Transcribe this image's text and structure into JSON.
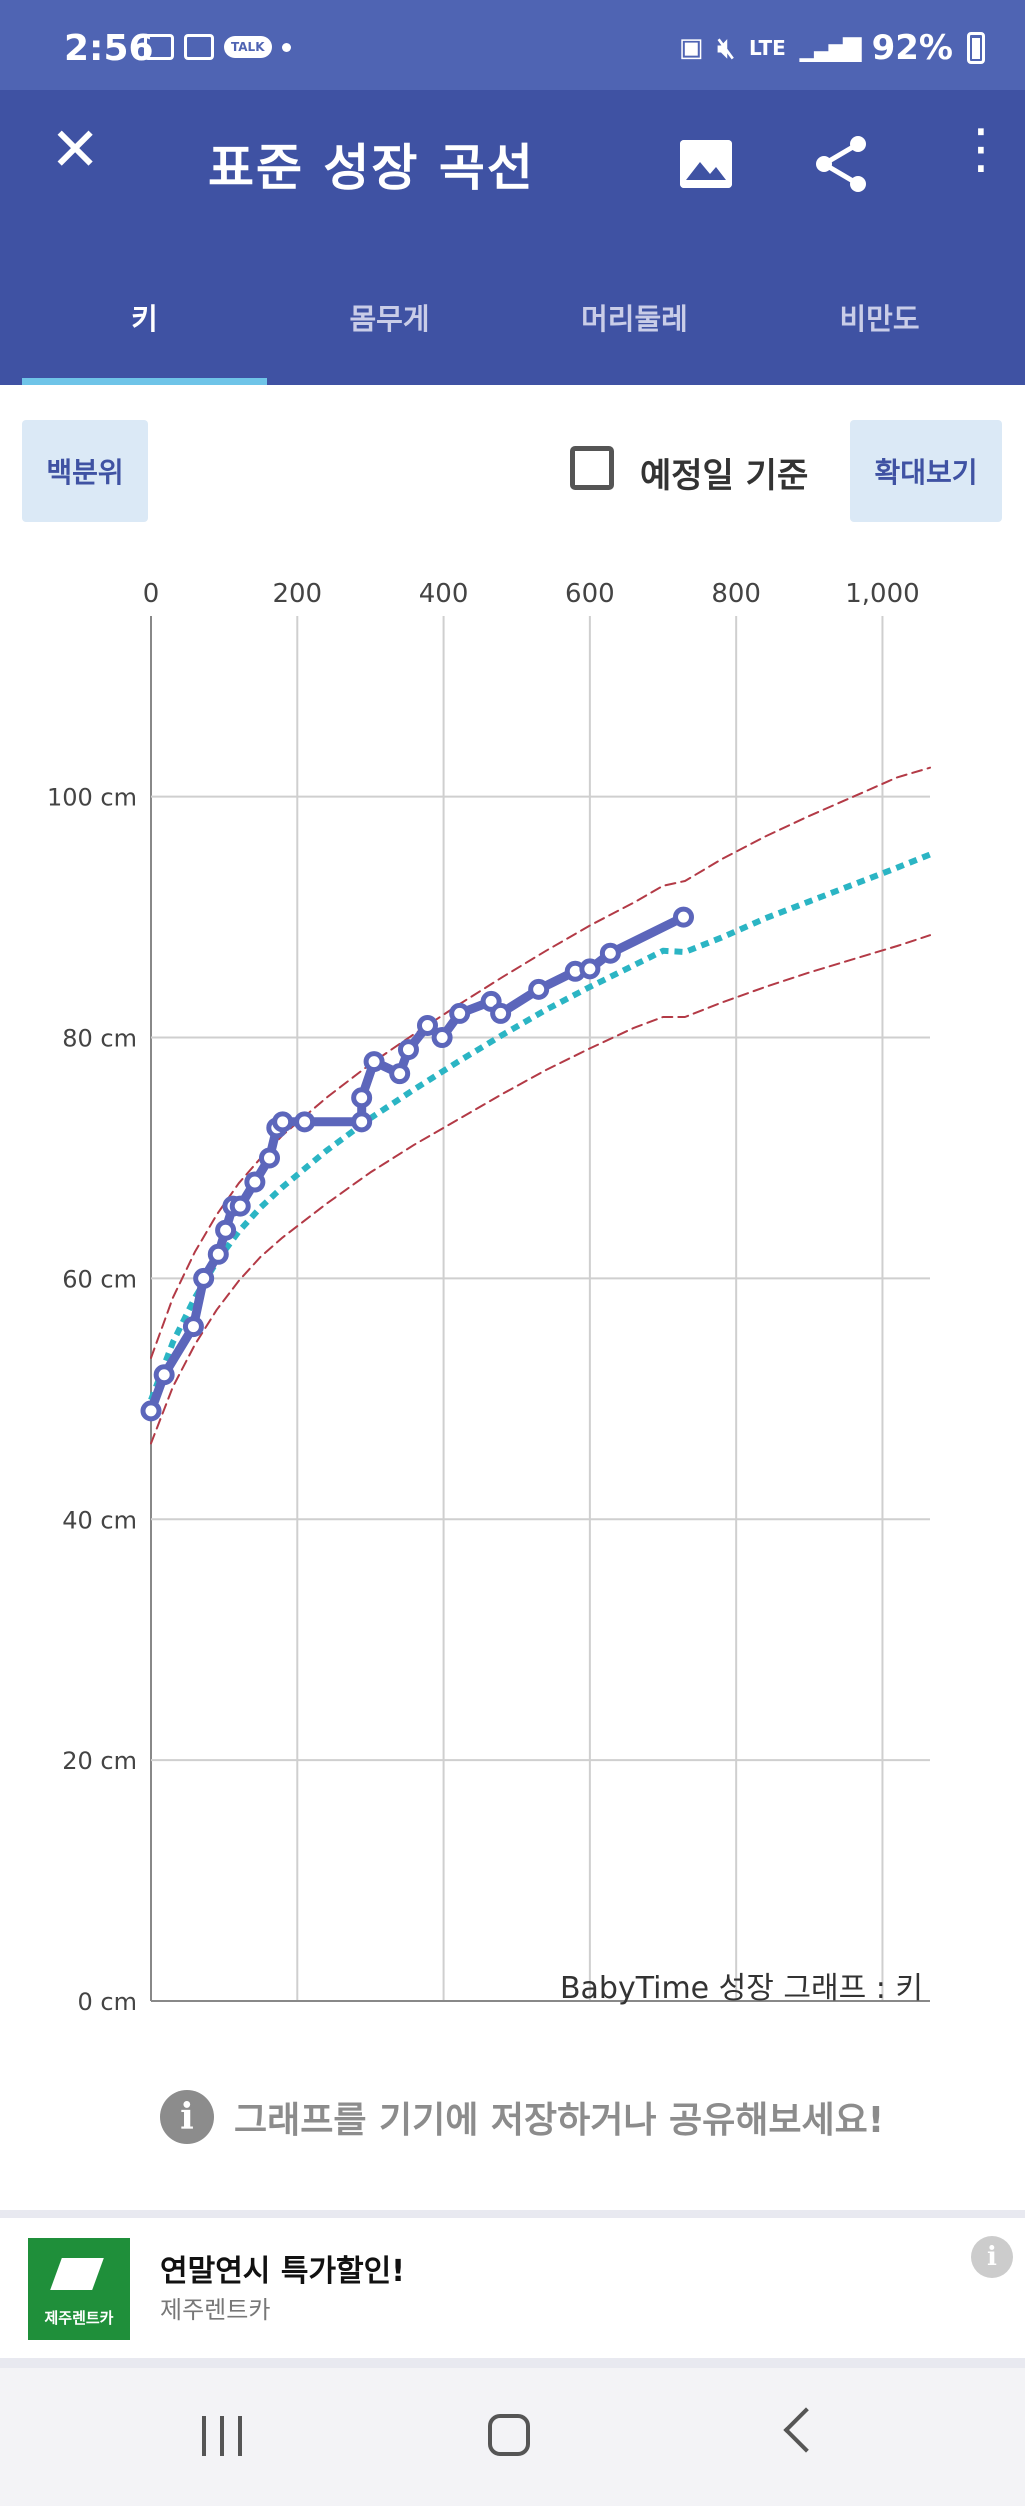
{
  "status_bar": {
    "time": "2:56",
    "talk_badge": "TALK",
    "network": "LTE",
    "battery": "92%"
  },
  "app_bar": {
    "title": "표준 성장 곡선",
    "icons": [
      "close-icon",
      "image-icon",
      "share-icon",
      "more-vertical-icon"
    ]
  },
  "tabs": [
    {
      "label": "키",
      "active": true
    },
    {
      "label": "몸무게",
      "active": false
    },
    {
      "label": "머리둘레",
      "active": false
    },
    {
      "label": "비만도",
      "active": false
    }
  ],
  "controls": {
    "percentile_button": "백분위",
    "due_date_label": "예정일 기준",
    "due_date_checked": false,
    "zoom_button": "확대보기"
  },
  "chart_data": {
    "type": "line",
    "watermark": "BabyTime 성장 그래프 : 키",
    "x_ticks": [
      "0",
      "200",
      "400",
      "600",
      "800",
      "1,000"
    ],
    "y_ticks": [
      "0 cm",
      "20 cm",
      "40 cm",
      "60 cm",
      "80 cm",
      "100 cm"
    ],
    "xlim": [
      0,
      1065
    ],
    "ylim": [
      0,
      115
    ],
    "grid": true,
    "series": [
      {
        "style": "solid-markers",
        "color": "#5c66bb",
        "points": [
          [
            0,
            49
          ],
          [
            18,
            52
          ],
          [
            58,
            56
          ],
          [
            72,
            60
          ],
          [
            92,
            62
          ],
          [
            102,
            64
          ],
          [
            112,
            66
          ],
          [
            122,
            66
          ],
          [
            142,
            68
          ],
          [
            162,
            70
          ],
          [
            172,
            72.5
          ],
          [
            180,
            73
          ],
          [
            210,
            73
          ],
          [
            288,
            73
          ],
          [
            288,
            75
          ],
          [
            305,
            78
          ],
          [
            340,
            77
          ],
          [
            352,
            79
          ],
          [
            378,
            81
          ],
          [
            398,
            80
          ],
          [
            422,
            82
          ],
          [
            465,
            83
          ],
          [
            478,
            82
          ],
          [
            530,
            84
          ],
          [
            580,
            85.5
          ],
          [
            600,
            85.7
          ],
          [
            628,
            87
          ],
          [
            728,
            90
          ]
        ]
      },
      {
        "style": "dotted",
        "color": "#2bb5c4",
        "points": [
          [
            0,
            49.9
          ],
          [
            30,
            54.7
          ],
          [
            60,
            58.4
          ],
          [
            90,
            61.4
          ],
          [
            120,
            63.9
          ],
          [
            150,
            65.9
          ],
          [
            180,
            67.6
          ],
          [
            240,
            70.6
          ],
          [
            300,
            73.3
          ],
          [
            360,
            75.7
          ],
          [
            420,
            78
          ],
          [
            480,
            80.2
          ],
          [
            540,
            82.3
          ],
          [
            600,
            84.2
          ],
          [
            660,
            86
          ],
          [
            700,
            87.2
          ],
          [
            730,
            87.1
          ],
          [
            780,
            88.3
          ],
          [
            840,
            89.9
          ],
          [
            900,
            91.3
          ],
          [
            960,
            92.7
          ],
          [
            1020,
            94.1
          ],
          [
            1065,
            95.2
          ]
        ]
      },
      {
        "style": "dashed-upper",
        "color": "#b33a46",
        "points": [
          [
            0,
            53.4
          ],
          [
            30,
            58.4
          ],
          [
            60,
            62.2
          ],
          [
            90,
            65.3
          ],
          [
            120,
            67.9
          ],
          [
            150,
            70
          ],
          [
            180,
            71.9
          ],
          [
            240,
            75
          ],
          [
            300,
            77.8
          ],
          [
            360,
            80.3
          ],
          [
            420,
            82.7
          ],
          [
            480,
            85
          ],
          [
            540,
            87.2
          ],
          [
            600,
            89.3
          ],
          [
            660,
            91.2
          ],
          [
            700,
            92.6
          ],
          [
            730,
            93
          ],
          [
            780,
            94.8
          ],
          [
            840,
            96.7
          ],
          [
            900,
            98.4
          ],
          [
            960,
            100
          ],
          [
            1020,
            101.6
          ],
          [
            1065,
            102.4
          ]
        ]
      },
      {
        "style": "dashed-lower",
        "color": "#b33a46",
        "points": [
          [
            0,
            46.3
          ],
          [
            30,
            51
          ],
          [
            60,
            54.5
          ],
          [
            90,
            57.4
          ],
          [
            120,
            59.8
          ],
          [
            150,
            61.8
          ],
          [
            180,
            63.4
          ],
          [
            240,
            66.2
          ],
          [
            300,
            68.8
          ],
          [
            360,
            71.1
          ],
          [
            420,
            73.2
          ],
          [
            480,
            75.3
          ],
          [
            540,
            77.3
          ],
          [
            600,
            79.1
          ],
          [
            660,
            80.8
          ],
          [
            700,
            81.7
          ],
          [
            730,
            81.7
          ],
          [
            780,
            82.9
          ],
          [
            840,
            84.2
          ],
          [
            900,
            85.4
          ],
          [
            960,
            86.5
          ],
          [
            1020,
            87.6
          ],
          [
            1065,
            88.5
          ]
        ]
      }
    ]
  },
  "info_hint": "그래프를 기기에 저장하거나 공유해보세요!",
  "ad": {
    "title": "연말연시 특가할인!",
    "advertiser": "제주렌트카",
    "logo_text": "제주렌트카"
  },
  "nav_bar": {
    "icons": [
      "recents-icon",
      "home-icon",
      "back-icon"
    ]
  }
}
